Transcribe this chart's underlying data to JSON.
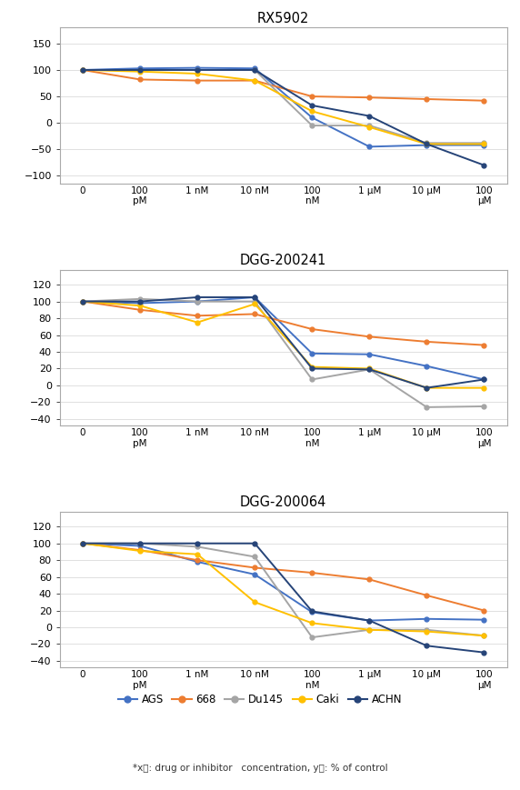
{
  "x_labels": [
    "0",
    "100\npM",
    "1 nM",
    "10 nM",
    "100\nnM",
    "1 μM",
    "10 μM",
    "100\nμM"
  ],
  "x_positions": [
    0,
    1,
    2,
    3,
    4,
    5,
    6,
    7
  ],
  "charts": [
    {
      "title": "RX5902",
      "ylim": [
        -115,
        180
      ],
      "yticks": [
        -100,
        -50,
        0,
        50,
        100,
        150
      ],
      "series": {
        "AGS": [
          100,
          103,
          104,
          103,
          10,
          -45,
          -42,
          -42
        ],
        "668": [
          100,
          82,
          80,
          80,
          50,
          48,
          45,
          42
        ],
        "Du145": [
          100,
          100,
          100,
          100,
          -5,
          -5,
          -38,
          -38
        ],
        "Caki": [
          100,
          97,
          93,
          80,
          22,
          -8,
          -40,
          -40
        ],
        "ACHN": [
          100,
          100,
          100,
          100,
          33,
          13,
          -40,
          -80
        ]
      }
    },
    {
      "title": "DGG-200241",
      "ylim": [
        -48,
        138
      ],
      "yticks": [
        -40,
        -20,
        0,
        20,
        40,
        60,
        80,
        100,
        120
      ],
      "series": {
        "AGS": [
          100,
          98,
          100,
          105,
          38,
          37,
          23,
          7
        ],
        "668": [
          100,
          90,
          83,
          85,
          67,
          58,
          52,
          48
        ],
        "Du145": [
          100,
          103,
          100,
          100,
          7,
          19,
          -26,
          -25
        ],
        "Caki": [
          100,
          95,
          75,
          97,
          22,
          20,
          -3,
          -3
        ],
        "ACHN": [
          100,
          100,
          105,
          105,
          20,
          19,
          -3,
          7
        ]
      }
    },
    {
      "title": "DGG-200064",
      "ylim": [
        -48,
        138
      ],
      "yticks": [
        -40,
        -20,
        0,
        20,
        40,
        60,
        80,
        100,
        120
      ],
      "series": {
        "AGS": [
          100,
          97,
          78,
          63,
          18,
          8,
          10,
          9
        ],
        "668": [
          100,
          92,
          80,
          71,
          65,
          57,
          38,
          20
        ],
        "Du145": [
          100,
          100,
          96,
          84,
          -12,
          -3,
          -3,
          -10
        ],
        "Caki": [
          100,
          91,
          87,
          30,
          5,
          -3,
          -5,
          -10
        ],
        "ACHN": [
          100,
          100,
          100,
          100,
          19,
          8,
          -22,
          -30
        ]
      }
    }
  ],
  "series_colors": {
    "AGS": "#4472C4",
    "668": "#ED7D31",
    "Du145": "#A5A5A5",
    "Caki": "#FFC000",
    "ACHN": "#264478"
  },
  "legend_labels": [
    "AGS",
    "668",
    "Du145",
    "Caki",
    "ACHN"
  ],
  "footnote": "*x축: drug or inhibitor   concentration, y축: % of control",
  "background_color": "#FFFFFF",
  "frame_color": "#AAAAAA",
  "grid_color": "#E0E0E0"
}
